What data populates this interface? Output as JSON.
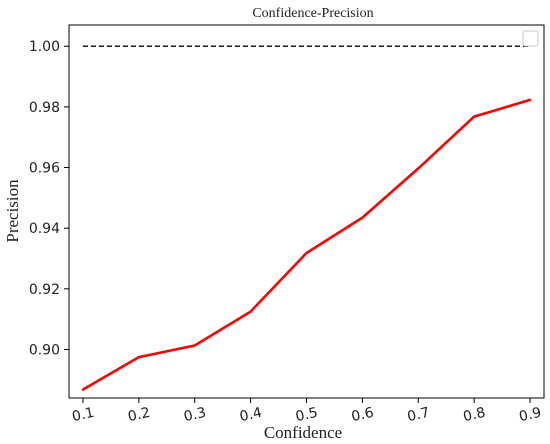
{
  "chart_data": {
    "type": "line",
    "title": "Confidence-Precision",
    "xlabel": "Confidence",
    "ylabel": "Precision",
    "x": [
      0.1,
      0.2,
      0.3,
      0.4,
      0.5,
      0.6,
      0.7,
      0.8,
      0.9
    ],
    "x_tick_labels": [
      "0.1",
      "0.2",
      "0.3",
      "0.4",
      "0.5",
      "0.6",
      "0.7",
      "0.8",
      "0.9"
    ],
    "y_tick_values": [
      0.9,
      0.92,
      0.94,
      0.96,
      0.98,
      1.0
    ],
    "y_tick_labels": [
      "0.90",
      "0.92",
      "0.94",
      "0.96",
      "0.98",
      "1.00"
    ],
    "ylim": [
      0.884,
      1.007
    ],
    "xlim": [
      0.075,
      0.925
    ],
    "grid": false,
    "legend": "top-right, empty",
    "series": [
      {
        "values": [
          0.8868,
          0.8975,
          0.9013,
          0.9125,
          0.9318,
          0.9435,
          0.9597,
          0.9768,
          0.9823
        ],
        "color": "#ff0000",
        "style": "solid"
      },
      {
        "values": [
          1.0,
          1.0,
          1.0,
          1.0,
          1.0,
          1.0,
          1.0,
          1.0,
          1.0
        ],
        "color": "#000000",
        "style": "dashed"
      }
    ]
  }
}
